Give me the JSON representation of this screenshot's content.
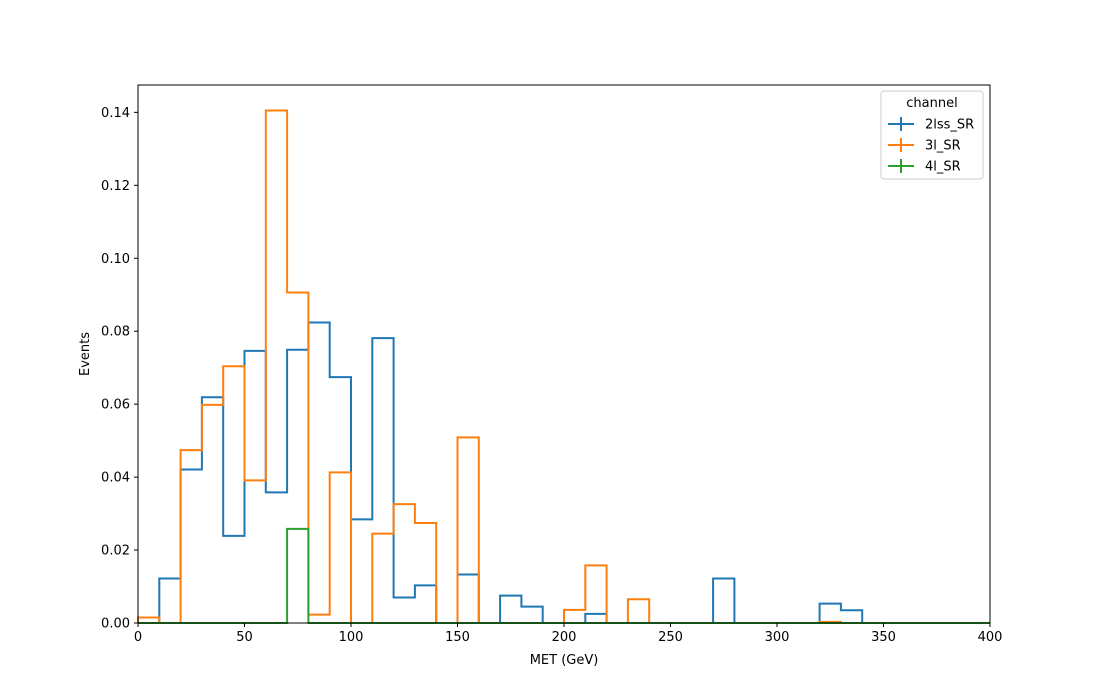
{
  "chart_data": {
    "type": "step",
    "xlabel": "MET (GeV)",
    "ylabel": "Events",
    "xlim": [
      0,
      400
    ],
    "ylim": [
      0,
      0.1475
    ],
    "x_ticks": [
      0,
      50,
      100,
      150,
      200,
      250,
      300,
      350,
      400
    ],
    "x_tick_labels": [
      "0",
      "50",
      "100",
      "150",
      "200",
      "250",
      "300",
      "350",
      "400"
    ],
    "y_ticks": [
      0,
      0.02,
      0.04,
      0.06,
      0.08,
      0.1,
      0.12,
      0.14
    ],
    "y_tick_labels": [
      "0.00",
      "0.02",
      "0.04",
      "0.06",
      "0.08",
      "0.10",
      "0.12",
      "0.14"
    ],
    "grid": false,
    "bin_edges": [
      0,
      10,
      20,
      30,
      40,
      50,
      60,
      70,
      80,
      90,
      100,
      110,
      120,
      130,
      140,
      150,
      160,
      170,
      180,
      190,
      200,
      210,
      220,
      230,
      240,
      250,
      260,
      270,
      280,
      290,
      300,
      310,
      320,
      330,
      340,
      350,
      360,
      370,
      380,
      390,
      400
    ],
    "legend": {
      "title": "channel",
      "placement": "top-right"
    },
    "series": [
      {
        "name": "2lss_SR",
        "color": "#1f77b4",
        "values": [
          0,
          0.0122,
          0.0421,
          0.0619,
          0.0239,
          0.0746,
          0.0358,
          0.0749,
          0.0824,
          0.0674,
          0.0284,
          0.0781,
          0.007,
          0.0103,
          0,
          0.0133,
          0,
          0.0075,
          0.0045,
          0,
          0,
          0.0025,
          0,
          0,
          0,
          0,
          0,
          0.0122,
          0,
          0,
          0,
          0,
          0.0053,
          0.0035,
          0,
          0,
          0,
          0,
          0,
          0
        ]
      },
      {
        "name": "3l_SR",
        "color": "#ff7f0e",
        "values": [
          0.0015,
          0,
          0.0474,
          0.0598,
          0.0704,
          0.0391,
          0.1405,
          0.0906,
          0.0023,
          0.0413,
          0,
          0.0245,
          0.0326,
          0.0274,
          0,
          0.0509,
          0,
          0,
          0,
          0,
          0.0036,
          0.0158,
          0,
          0.0065,
          0,
          0,
          0,
          0,
          0,
          0,
          0,
          0,
          0.0003,
          0,
          0,
          0,
          0,
          0,
          0,
          0
        ]
      },
      {
        "name": "4l_SR",
        "color": "#2ca02c",
        "values": [
          0,
          0,
          0,
          0,
          0,
          0,
          0,
          0.0258,
          0,
          0,
          0,
          0,
          0,
          0,
          0,
          0,
          0,
          0,
          0,
          0,
          0,
          0,
          0,
          0,
          0,
          0,
          0,
          0,
          0,
          0,
          0,
          0,
          0,
          0,
          0,
          0,
          0,
          0,
          0,
          0
        ]
      }
    ]
  }
}
